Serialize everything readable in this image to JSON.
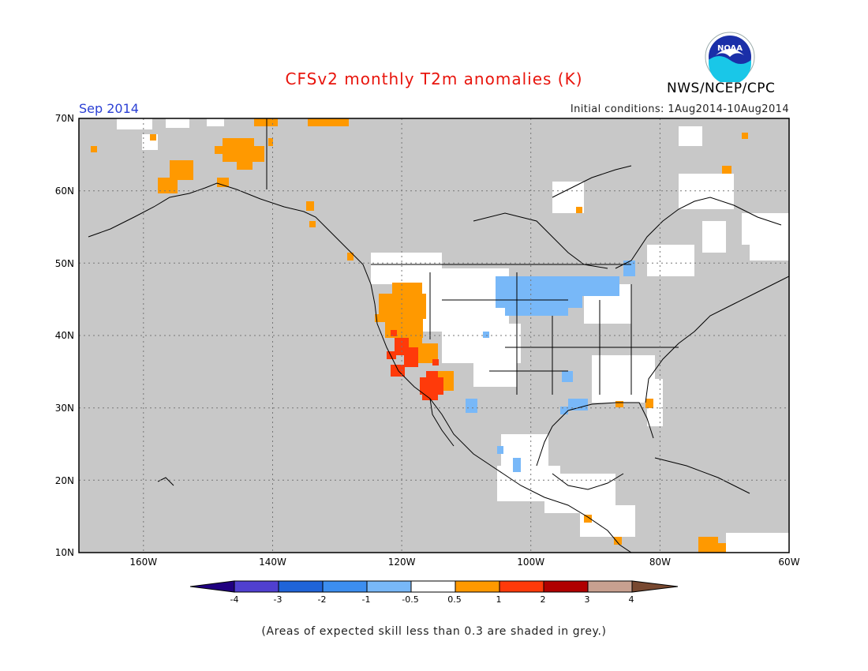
{
  "header": {
    "title": "CFSv2 monthly T2m anomalies (K)",
    "month": "Sep 2014",
    "agency": "NWS/NCEP/CPC",
    "initial_conditions": "Initial conditions: 1Aug2014-10Aug2014",
    "logo_text": "NOAA"
  },
  "map": {
    "lat_labels": [
      "70N",
      "60N",
      "50N",
      "40N",
      "30N",
      "20N",
      "10N"
    ],
    "lon_labels": [
      "160W",
      "140W",
      "120W",
      "100W",
      "80W",
      "60W"
    ],
    "lat_range": [
      10,
      70
    ],
    "lon_range": [
      -170,
      -60
    ],
    "background_color": "#c8c8c8",
    "gridlines": "dotted"
  },
  "colorbar": {
    "tick_labels": [
      "-4",
      "-3",
      "-2",
      "-1",
      "-0.5",
      "0.5",
      "1",
      "2",
      "3",
      "4"
    ],
    "colors": [
      "#200080",
      "#5040d0",
      "#1f64d8",
      "#3c8ef0",
      "#78b8f8",
      "#ffffff",
      "#ff9900",
      "#ff3a0a",
      "#b00000",
      "#c8a090",
      "#784830"
    ]
  },
  "footnote": "(Areas of expected skill less than 0.3 are shaded in grey.)"
}
